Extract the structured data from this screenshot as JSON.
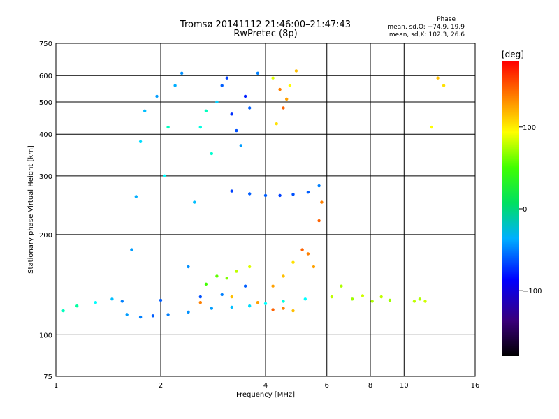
{
  "header": {
    "title_line1": "Tromsø 20141112 21:46:00–21:47:43",
    "title_line2": "RwPretec (8p)",
    "phase_title": "Phase",
    "phase_o": "mean, sd,O: −74.9, 19.9",
    "phase_x": "mean, sd,X: 102.3, 26.6"
  },
  "colorbar": {
    "unit_label": "[deg]",
    "range": [
      -180,
      180
    ],
    "ticks": [
      {
        "value": 100,
        "label": "100"
      },
      {
        "value": 0,
        "label": "0"
      },
      {
        "value": -100,
        "label": "−100"
      }
    ]
  },
  "chart_data": {
    "type": "scatter",
    "title": "Tromsø 20141112 21:46:00–21:47:43",
    "subtitle": "RwPretec (8p)",
    "xlabel": "Frequency [MHz]",
    "ylabel": "Stationary phase Virtual Height [km]",
    "x_scale": "log",
    "y_scale": "log",
    "xlim": [
      1,
      16
    ],
    "ylim": [
      75,
      750
    ],
    "x_ticks": [
      1,
      2,
      4,
      6,
      8,
      10,
      16
    ],
    "y_ticks": [
      75,
      100,
      200,
      300,
      400,
      500,
      600,
      750
    ],
    "color_scale": "rainbow, phase in degrees",
    "series": [
      {
        "name": "O",
        "points": [
          [
            1.05,
            118,
            -40
          ],
          [
            1.15,
            122,
            -30
          ],
          [
            1.3,
            125,
            -60
          ],
          [
            1.45,
            128,
            -80
          ],
          [
            1.6,
            115,
            -90
          ],
          [
            1.75,
            113,
            -100
          ],
          [
            1.9,
            114,
            -110
          ],
          [
            2.1,
            115,
            -100
          ],
          [
            2.4,
            117,
            -95
          ],
          [
            2.8,
            120,
            -90
          ],
          [
            3.2,
            121,
            -80
          ],
          [
            3.6,
            122,
            -70
          ],
          [
            4.0,
            124,
            -60
          ],
          [
            4.5,
            126,
            -50
          ],
          [
            5.2,
            128,
            -60
          ],
          [
            1.55,
            126,
            -100
          ],
          [
            2.0,
            127,
            -110
          ],
          [
            2.6,
            130,
            -115
          ],
          [
            3.0,
            132,
            -100
          ],
          [
            3.5,
            140,
            -110
          ],
          [
            1.65,
            180,
            -90
          ],
          [
            1.7,
            260,
            -85
          ],
          [
            1.75,
            380,
            -70
          ],
          [
            1.8,
            470,
            -80
          ],
          [
            1.95,
            520,
            -90
          ],
          [
            2.05,
            300,
            -60
          ],
          [
            2.1,
            420,
            -40
          ],
          [
            2.2,
            560,
            -85
          ],
          [
            2.3,
            610,
            -95
          ],
          [
            2.4,
            160,
            -95
          ],
          [
            2.5,
            250,
            -80
          ],
          [
            2.6,
            420,
            -50
          ],
          [
            2.7,
            470,
            -40
          ],
          [
            2.8,
            350,
            -45
          ],
          [
            2.9,
            500,
            -75
          ],
          [
            3.0,
            560,
            -110
          ],
          [
            3.1,
            590,
            -120
          ],
          [
            3.2,
            460,
            -125
          ],
          [
            3.3,
            410,
            -115
          ],
          [
            3.4,
            370,
            -90
          ],
          [
            3.5,
            520,
            -130
          ],
          [
            3.6,
            480,
            -110
          ],
          [
            3.8,
            610,
            -100
          ],
          [
            3.2,
            270,
            -120
          ],
          [
            3.6,
            265,
            -110
          ],
          [
            4.0,
            262,
            -110
          ],
          [
            4.4,
            262,
            -120
          ],
          [
            4.8,
            264,
            -115
          ],
          [
            5.3,
            268,
            -110
          ],
          [
            5.7,
            280,
            -100
          ]
        ]
      },
      {
        "name": "X",
        "points": [
          [
            2.7,
            142,
            40
          ],
          [
            2.9,
            150,
            50
          ],
          [
            3.1,
            148,
            60
          ],
          [
            3.3,
            155,
            80
          ],
          [
            3.6,
            160,
            90
          ],
          [
            2.6,
            125,
            140
          ],
          [
            3.2,
            130,
            120
          ],
          [
            3.8,
            125,
            130
          ],
          [
            4.2,
            119,
            150
          ],
          [
            4.5,
            120,
            140
          ],
          [
            4.8,
            118,
            120
          ],
          [
            4.2,
            140,
            130
          ],
          [
            4.5,
            150,
            120
          ],
          [
            4.8,
            165,
            110
          ],
          [
            5.1,
            180,
            150
          ],
          [
            5.3,
            175,
            140
          ],
          [
            5.5,
            160,
            130
          ],
          [
            5.7,
            220,
            150
          ],
          [
            5.8,
            250,
            140
          ],
          [
            4.3,
            430,
            110
          ],
          [
            4.5,
            480,
            150
          ],
          [
            4.6,
            510,
            130
          ],
          [
            4.7,
            560,
            100
          ],
          [
            4.9,
            620,
            120
          ],
          [
            4.2,
            590,
            90
          ],
          [
            4.4,
            545,
            140
          ],
          [
            6.2,
            130,
            80
          ],
          [
            6.6,
            140,
            75
          ],
          [
            7.1,
            128,
            70
          ],
          [
            7.6,
            131,
            85
          ],
          [
            8.1,
            126,
            75
          ],
          [
            8.6,
            130,
            80
          ],
          [
            9.1,
            127,
            70
          ],
          [
            10.7,
            126,
            80
          ],
          [
            11.1,
            128,
            75
          ],
          [
            11.5,
            126,
            85
          ],
          [
            12.5,
            590,
            120
          ],
          [
            13.0,
            560,
            110
          ],
          [
            12.0,
            420,
            100
          ]
        ]
      }
    ]
  }
}
